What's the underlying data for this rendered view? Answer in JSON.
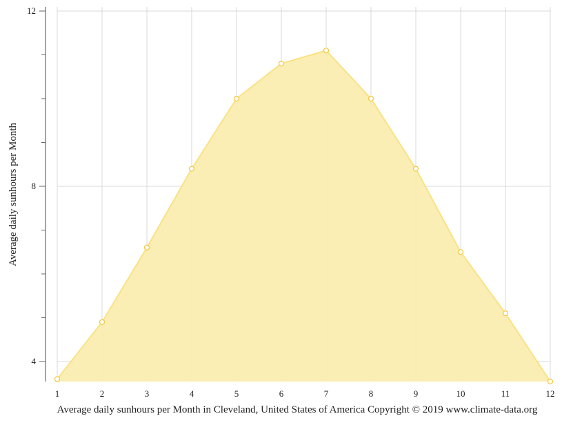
{
  "chart_data": {
    "type": "area",
    "title": "",
    "xlabel": "Average daily sunhours per Month in Cleveland, United States of America Copyright © 2019 www.climate-data.org",
    "ylabel": "Average daily sunhours per Month",
    "categories": [
      "1",
      "2",
      "3",
      "4",
      "5",
      "6",
      "7",
      "8",
      "9",
      "10",
      "11",
      "12"
    ],
    "series": [
      {
        "name": "Average daily sunhours",
        "values": [
          3.6,
          4.9,
          6.6,
          8.4,
          10.0,
          10.8,
          11.1,
          10.0,
          8.4,
          6.5,
          5.1,
          3.5
        ],
        "color": "#f9e587"
      }
    ],
    "ylim": [
      3.5,
      12
    ],
    "yticks_major": [
      4,
      8,
      12
    ],
    "yticks_minor": [
      5,
      6,
      7,
      9,
      10,
      11
    ],
    "grid": true,
    "legend": "none"
  },
  "colors": {
    "fill": "#faedb0",
    "stroke": "#f9e284",
    "marker_stroke": "#f5c842",
    "grid": "#d9d9d9",
    "axis": "#666666"
  }
}
